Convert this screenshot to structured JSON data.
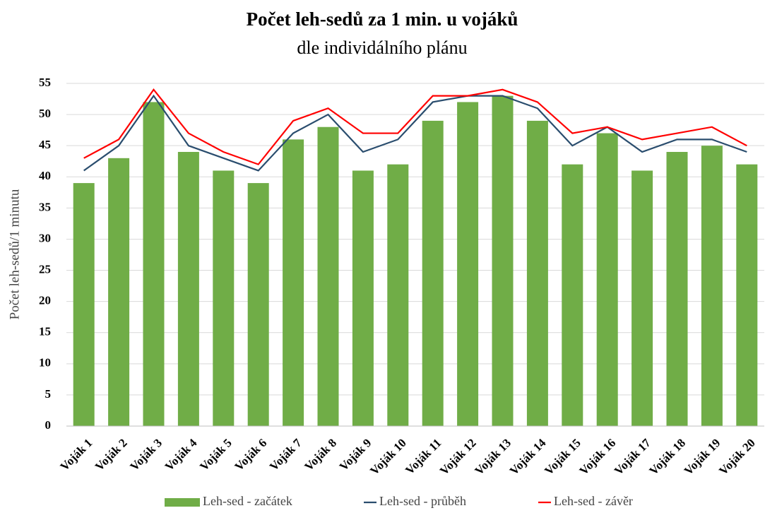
{
  "chart_data": {
    "type": "bar-line",
    "title": "Počet leh-sedů za 1 min. u vojáků",
    "subtitle": "dle individálního plánu",
    "y_label": "Počet leh-sedů/1 minutu",
    "categories": [
      "Voják 1",
      "Voják 2",
      "Voják 3",
      "Voják 4",
      "Voják 5",
      "Voják 6",
      "Voják 7",
      "Voják 8",
      "Voják 9",
      "Voják 10",
      "Voják 11",
      "Voják 12",
      "Voják 13",
      "Voják 14",
      "Voják 15",
      "Voják 16",
      "Voják 17",
      "Voják 18",
      "Voják 19",
      "Voják 20"
    ],
    "series": [
      {
        "name": "Leh-sed - začátek",
        "type": "bar",
        "color": "#70ad47",
        "values": [
          39,
          43,
          52,
          44,
          41,
          39,
          46,
          48,
          41,
          42,
          49,
          52,
          53,
          49,
          42,
          47,
          41,
          44,
          45,
          42
        ]
      },
      {
        "name": "Leh-sed - průběh",
        "type": "line",
        "color": "#2a4d6e",
        "values": [
          41,
          45,
          53,
          45,
          43,
          41,
          47,
          50,
          44,
          46,
          52,
          53,
          53,
          51,
          45,
          48,
          44,
          46,
          46,
          44
        ]
      },
      {
        "name": "Leh-sed - závěr",
        "type": "line",
        "color": "#ff0000",
        "values": [
          43,
          46,
          54,
          47,
          44,
          42,
          49,
          51,
          47,
          47,
          53,
          53,
          54,
          52,
          47,
          48,
          46,
          47,
          48,
          45
        ]
      }
    ],
    "ylim": [
      0,
      55
    ],
    "yticks": [
      0,
      5,
      10,
      15,
      20,
      25,
      30,
      35,
      40,
      45,
      50,
      55
    ],
    "grid": true,
    "legend": "bottom"
  }
}
